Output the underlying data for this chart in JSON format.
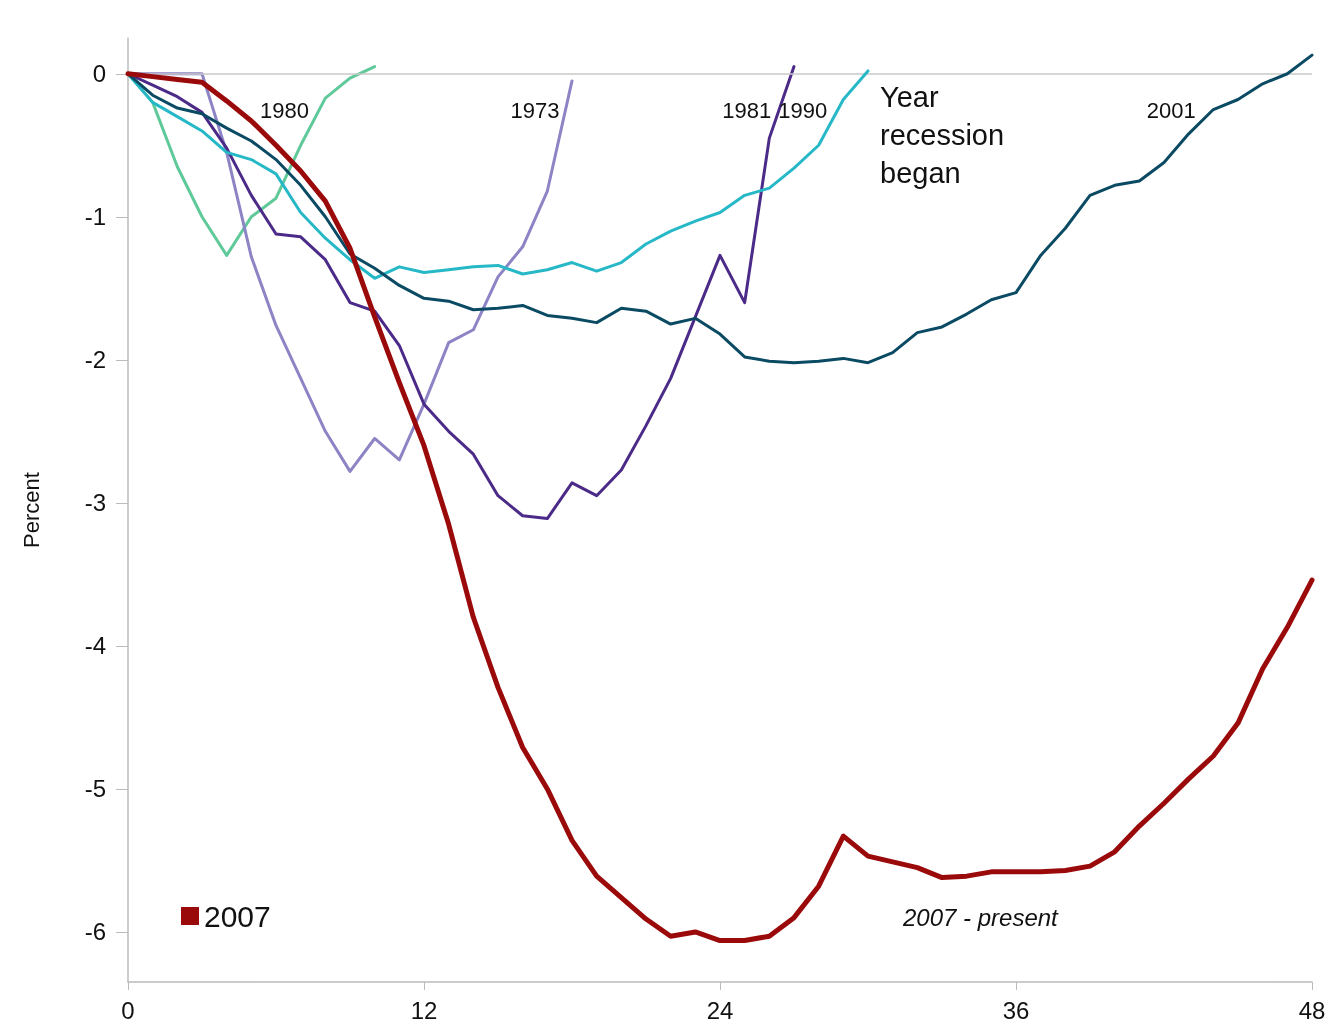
{
  "chart_data": {
    "type": "line",
    "ylabel": "Percent",
    "xlim": [
      0,
      48
    ],
    "xticks": [
      0,
      12,
      24,
      36,
      48
    ],
    "ylim": [
      -6.35,
      0.25
    ],
    "yticks": [
      -6,
      -5,
      -4,
      -3,
      -2,
      -1,
      0
    ],
    "legend": "bottom left",
    "marker": "none",
    "line_style": "solid",
    "ref_lines": [
      {
        "axis": "y",
        "value": 0,
        "color": "#c8c8c8"
      }
    ],
    "annotations": [
      "Year recession began",
      "2007 - present"
    ],
    "series": [
      {
        "name": "1980",
        "color": "#5fc99a",
        "x": [
          0,
          1,
          2,
          3,
          4,
          5,
          6,
          7,
          8,
          9,
          10
        ],
        "values": [
          0,
          -0.2,
          -0.65,
          -1.0,
          -1.27,
          -1.0,
          -0.87,
          -0.5,
          -0.17,
          -0.03,
          0.05
        ]
      },
      {
        "name": "1973",
        "color": "#8c84c4",
        "x": [
          0,
          1,
          2,
          3,
          4,
          5,
          6,
          7,
          8,
          9,
          10,
          11,
          12,
          13,
          14,
          15,
          16,
          17,
          18
        ],
        "values": [
          0,
          0,
          0,
          0,
          -0.55,
          -1.28,
          -1.76,
          -2.13,
          -2.5,
          -2.78,
          -2.55,
          -2.7,
          -2.31,
          -1.88,
          -1.79,
          -1.42,
          -1.21,
          -0.82,
          -0.05
        ]
      },
      {
        "name": "1981",
        "color": "#4b2a88",
        "x": [
          0,
          1,
          2,
          3,
          4,
          5,
          6,
          7,
          8,
          9,
          10,
          11,
          12,
          13,
          14,
          15,
          16,
          17,
          18,
          19,
          20,
          21,
          22,
          23,
          24,
          25,
          26,
          27
        ],
        "values": [
          0,
          -0.08,
          -0.16,
          -0.27,
          -0.52,
          -0.85,
          -1.12,
          -1.14,
          -1.3,
          -1.6,
          -1.66,
          -1.9,
          -2.31,
          -2.5,
          -2.66,
          -2.95,
          -3.09,
          -3.11,
          -2.86,
          -2.95,
          -2.77,
          -2.46,
          -2.13,
          -1.7,
          -1.27,
          -1.6,
          -0.45,
          0.05
        ]
      },
      {
        "name": "1990",
        "color": "#27b8c8",
        "x": [
          0,
          1,
          2,
          3,
          4,
          5,
          6,
          7,
          8,
          9,
          10,
          11,
          12,
          13,
          14,
          15,
          16,
          17,
          18,
          19,
          20,
          21,
          22,
          23,
          24,
          25,
          26,
          27,
          28,
          29,
          30
        ],
        "values": [
          0,
          -0.2,
          -0.3,
          -0.4,
          -0.55,
          -0.6,
          -0.7,
          -0.97,
          -1.15,
          -1.3,
          -1.43,
          -1.35,
          -1.39,
          -1.37,
          -1.35,
          -1.34,
          -1.4,
          -1.37,
          -1.32,
          -1.38,
          -1.32,
          -1.19,
          -1.1,
          -1.03,
          -0.97,
          -0.85,
          -0.8,
          -0.66,
          -0.5,
          -0.18,
          0.02
        ]
      },
      {
        "name": "2001",
        "color": "#0a4a63",
        "x": [
          0,
          1,
          2,
          3,
          4,
          5,
          6,
          7,
          8,
          9,
          10,
          11,
          12,
          13,
          14,
          15,
          16,
          17,
          18,
          19,
          20,
          21,
          22,
          23,
          24,
          25,
          26,
          27,
          28,
          29,
          30,
          31,
          32,
          33,
          34,
          35,
          36,
          37,
          38,
          39,
          40,
          41,
          42,
          43,
          44,
          45,
          46,
          47,
          48
        ],
        "values": [
          0,
          -0.15,
          -0.24,
          -0.28,
          -0.38,
          -0.47,
          -0.6,
          -0.78,
          -1.0,
          -1.26,
          -1.36,
          -1.48,
          -1.57,
          -1.59,
          -1.65,
          -1.64,
          -1.62,
          -1.69,
          -1.71,
          -1.74,
          -1.64,
          -1.66,
          -1.75,
          -1.71,
          -1.82,
          -1.98,
          -2.01,
          -2.02,
          -2.01,
          -1.99,
          -2.02,
          -1.95,
          -1.81,
          -1.77,
          -1.68,
          -1.58,
          -1.53,
          -1.27,
          -1.08,
          -0.85,
          -0.78,
          -0.75,
          -0.62,
          -0.42,
          -0.25,
          -0.18,
          -0.07,
          0.0,
          0.13
        ]
      },
      {
        "name": "2007",
        "color": "#9b0a0a",
        "x": [
          0,
          1,
          2,
          3,
          4,
          5,
          6,
          7,
          8,
          9,
          10,
          11,
          12,
          13,
          14,
          15,
          16,
          17,
          18,
          19,
          20,
          21,
          22,
          23,
          24,
          25,
          26,
          27,
          28,
          29,
          30,
          31,
          32,
          33,
          34,
          35,
          36,
          37,
          38,
          39,
          40,
          41,
          42,
          43,
          44,
          45,
          46,
          47,
          48
        ],
        "values": [
          0,
          -0.02,
          -0.04,
          -0.06,
          -0.19,
          -0.33,
          -0.5,
          -0.68,
          -0.89,
          -1.22,
          -1.7,
          -2.16,
          -2.6,
          -3.15,
          -3.8,
          -4.29,
          -4.71,
          -5.0,
          -5.36,
          -5.61,
          -5.76,
          -5.91,
          -6.03,
          -6.0,
          -6.06,
          -6.06,
          -6.03,
          -5.9,
          -5.68,
          -5.33,
          -5.47,
          -5.51,
          -5.55,
          -5.62,
          -5.61,
          -5.58,
          -5.58,
          -5.58,
          -5.57,
          -5.54,
          -5.44,
          -5.26,
          -5.1,
          -4.93,
          -4.77,
          -4.54,
          -4.16,
          -3.87,
          -3.54
        ]
      }
    ]
  }
}
